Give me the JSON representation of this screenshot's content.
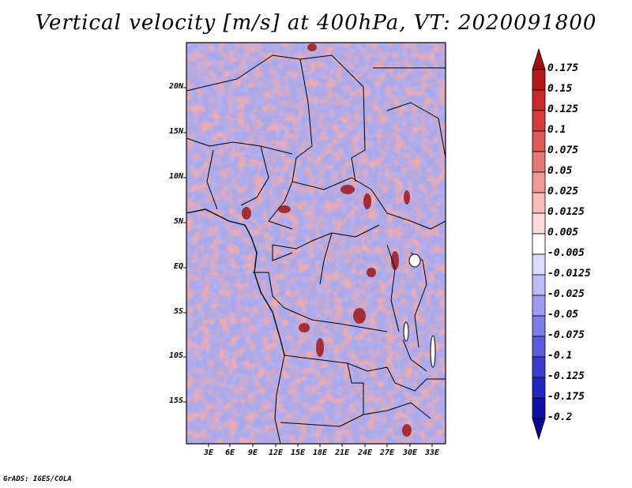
{
  "title": "Vertical velocity [m/s] at 400hPa, VT: 2020091800",
  "footer": "GrADS: IGES/COLA",
  "map": {
    "y_labels": [
      "20N",
      "15N",
      "10N",
      "5N",
      "EQ",
      "5S",
      "10S",
      "15S"
    ],
    "x_labels": [
      "3E",
      "6E",
      "9E",
      "12E",
      "15E",
      "18E",
      "21E",
      "24E",
      "27E",
      "30E",
      "33E"
    ]
  },
  "colorbar": {
    "levels": [
      "0.175",
      "0.15",
      "0.125",
      "0.1",
      "0.075",
      "0.05",
      "0.025",
      "0.0125",
      "0.005",
      "-0.005",
      "-0.0125",
      "-0.025",
      "-0.05",
      "-0.075",
      "-0.1",
      "-0.125",
      "-0.175",
      "-0.2"
    ],
    "colors": [
      "#a01010",
      "#b41818",
      "#c82828",
      "#d63c3c",
      "#e05858",
      "#e87878",
      "#f09898",
      "#f8bcbc",
      "#fcdcdc",
      "#ffffff",
      "#dcdcfc",
      "#bcbcf8",
      "#9c9cf0",
      "#7c7ce8",
      "#5c5cdc",
      "#3c3cd0",
      "#2424c0",
      "#1010a8",
      "#080890"
    ]
  }
}
